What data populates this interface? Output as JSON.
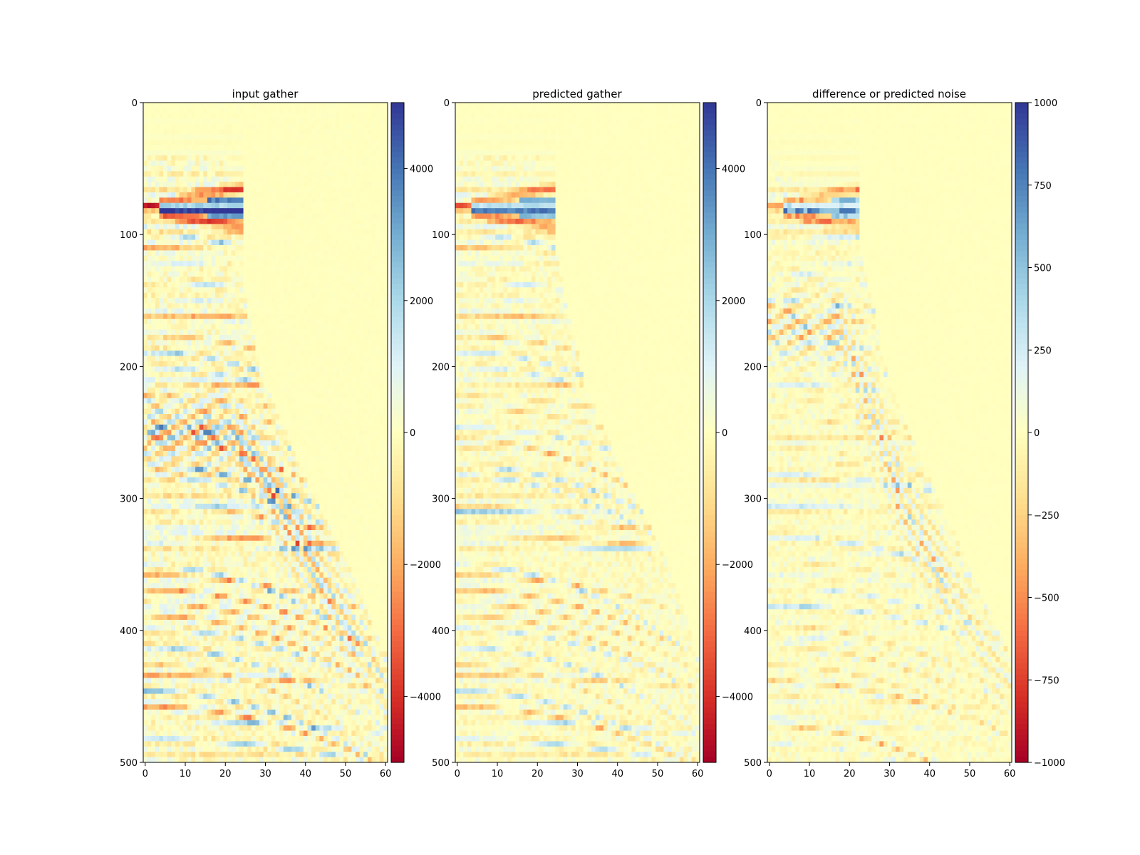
{
  "chart_data": [
    {
      "type": "heatmap",
      "title": "input gather",
      "x_ticks": [
        0,
        10,
        20,
        30,
        40,
        50,
        60
      ],
      "y_ticks": [
        0,
        100,
        200,
        300,
        400,
        500
      ],
      "xlim": [
        0,
        61
      ],
      "ylim": [
        500,
        0
      ],
      "y_inverted": true,
      "colormap": "RdYlBu",
      "colorbar": {
        "range": [
          -5000,
          5000
        ],
        "ticks": [
          -4000,
          -2000,
          0,
          2000,
          4000
        ]
      },
      "features": {
        "first_break_offset_pairs": [
          [
            0,
            40
          ],
          [
            20,
            40
          ],
          [
            22,
            100
          ],
          [
            26,
            165
          ],
          [
            30,
            215
          ],
          [
            40,
            285
          ],
          [
            50,
            345
          ],
          [
            61,
            425
          ]
        ],
        "direct_arrival_time": 80,
        "direct_arrival_max_offset": 24,
        "strong_reflector_time": 307,
        "noise_cone": [
          [
            22,
            250
          ],
          [
            33,
            300
          ],
          [
            42,
            355
          ],
          [
            50,
            395
          ],
          [
            61,
            445
          ]
        ]
      }
    },
    {
      "type": "heatmap",
      "title": "predicted gather",
      "x_ticks": [
        0,
        10,
        20,
        30,
        40,
        50,
        60
      ],
      "y_ticks": [
        0,
        100,
        200,
        300,
        400,
        500
      ],
      "xlim": [
        0,
        61
      ],
      "ylim": [
        500,
        0
      ],
      "y_inverted": true,
      "colormap": "RdYlBu",
      "colorbar": {
        "range": [
          -5000,
          5000
        ],
        "ticks": [
          -4000,
          -2000,
          0,
          2000,
          4000
        ]
      },
      "features": {
        "first_break_offset_pairs": [
          [
            0,
            40
          ],
          [
            20,
            40
          ],
          [
            24,
            100
          ],
          [
            28,
            165
          ],
          [
            32,
            215
          ],
          [
            42,
            285
          ],
          [
            52,
            345
          ],
          [
            61,
            425
          ]
        ],
        "direct_arrival_time": 80,
        "direct_arrival_max_offset": 24,
        "strong_reflector_time": 310
      }
    },
    {
      "type": "heatmap",
      "title": "difference or predicted noise",
      "x_ticks": [
        0,
        10,
        20,
        30,
        40,
        50,
        60
      ],
      "y_ticks": [
        0,
        100,
        200,
        300,
        400,
        500
      ],
      "xlim": [
        0,
        61
      ],
      "ylim": [
        500,
        0
      ],
      "y_inverted": true,
      "colormap": "RdYlBu",
      "colorbar": {
        "range": [
          -1000,
          1000
        ],
        "ticks": [
          -1000,
          -750,
          -500,
          -250,
          0,
          250,
          500,
          750,
          1000
        ]
      },
      "features": {
        "direct_arrival_time": 80,
        "direct_arrival_max_offset": 22,
        "strong_reflector_time": 307,
        "noise_cone": [
          [
            18,
            170
          ],
          [
            33,
            300
          ],
          [
            42,
            355
          ],
          [
            50,
            395
          ],
          [
            61,
            445
          ]
        ]
      }
    }
  ]
}
